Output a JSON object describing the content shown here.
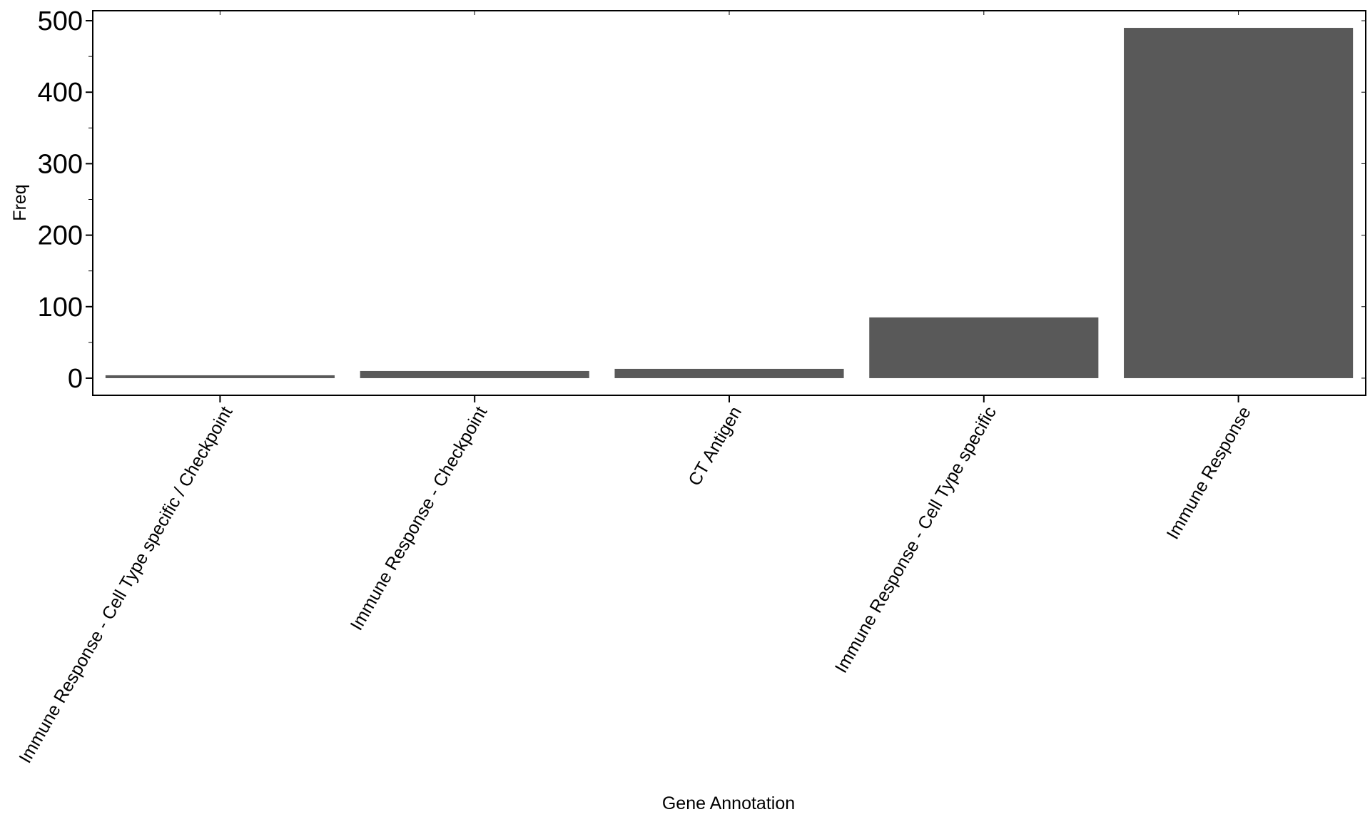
{
  "chart_data": {
    "type": "bar",
    "categories": [
      "Immune Response - Cell Type specific / Checkpoint",
      "Immune Response - Checkpoint",
      "CT Antigen",
      "Immune Response - Cell Type specific",
      "Immune Response"
    ],
    "values": [
      4,
      10,
      13,
      85,
      490
    ],
    "xlabel": "Gene Annotation",
    "ylabel": "Freq",
    "ylim": [
      -24,
      514
    ],
    "yticks": [
      0,
      100,
      200,
      300,
      400,
      500
    ],
    "grid": false,
    "legend": "none",
    "bar_color": "#595959",
    "axis_color": "#000000"
  }
}
